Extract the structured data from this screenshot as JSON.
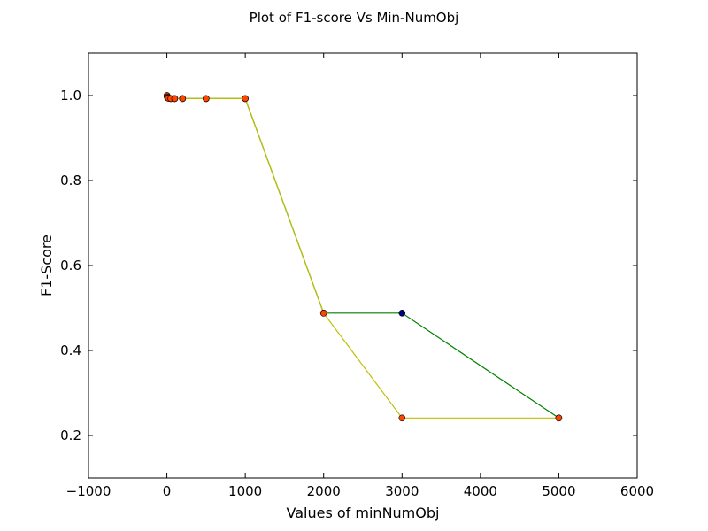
{
  "chart_data": {
    "type": "line",
    "title": "Plot of F1-score Vs Min-NumObj",
    "xlabel": "Values of minNumObj",
    "ylabel": "F1-Score",
    "xlim": [
      -1000,
      6000
    ],
    "ylim": [
      0.1,
      1.1
    ],
    "xticks": [
      -1000,
      0,
      1000,
      2000,
      3000,
      4000,
      5000,
      6000
    ],
    "yticks": [
      0.2,
      0.4,
      0.6,
      0.8,
      1.0
    ],
    "xtick_labels": [
      "−1000",
      "0",
      "1000",
      "2000",
      "3000",
      "4000",
      "5000",
      "6000"
    ],
    "ytick_labels": [
      "0.2",
      "0.4",
      "0.6",
      "0.8",
      "1.0"
    ],
    "grid": false,
    "series": [
      {
        "color": "#008000",
        "marker_color": "#000080",
        "x": [
          2,
          5,
          10,
          20,
          50,
          100,
          200,
          500,
          1000,
          2000,
          3000,
          5000
        ],
        "y": [
          1.0,
          0.997,
          0.995,
          0.994,
          0.993,
          0.993,
          0.993,
          0.993,
          0.993,
          0.488,
          0.488,
          0.241
        ]
      },
      {
        "color": "#bfbf00",
        "marker_color": "#ff4500",
        "x": [
          2,
          5,
          10,
          20,
          50,
          100,
          200,
          500,
          1000,
          2000,
          3000,
          5000
        ],
        "y": [
          1.0,
          0.997,
          0.995,
          0.994,
          0.993,
          0.993,
          0.993,
          0.993,
          0.993,
          0.488,
          0.241,
          0.241
        ]
      }
    ]
  }
}
